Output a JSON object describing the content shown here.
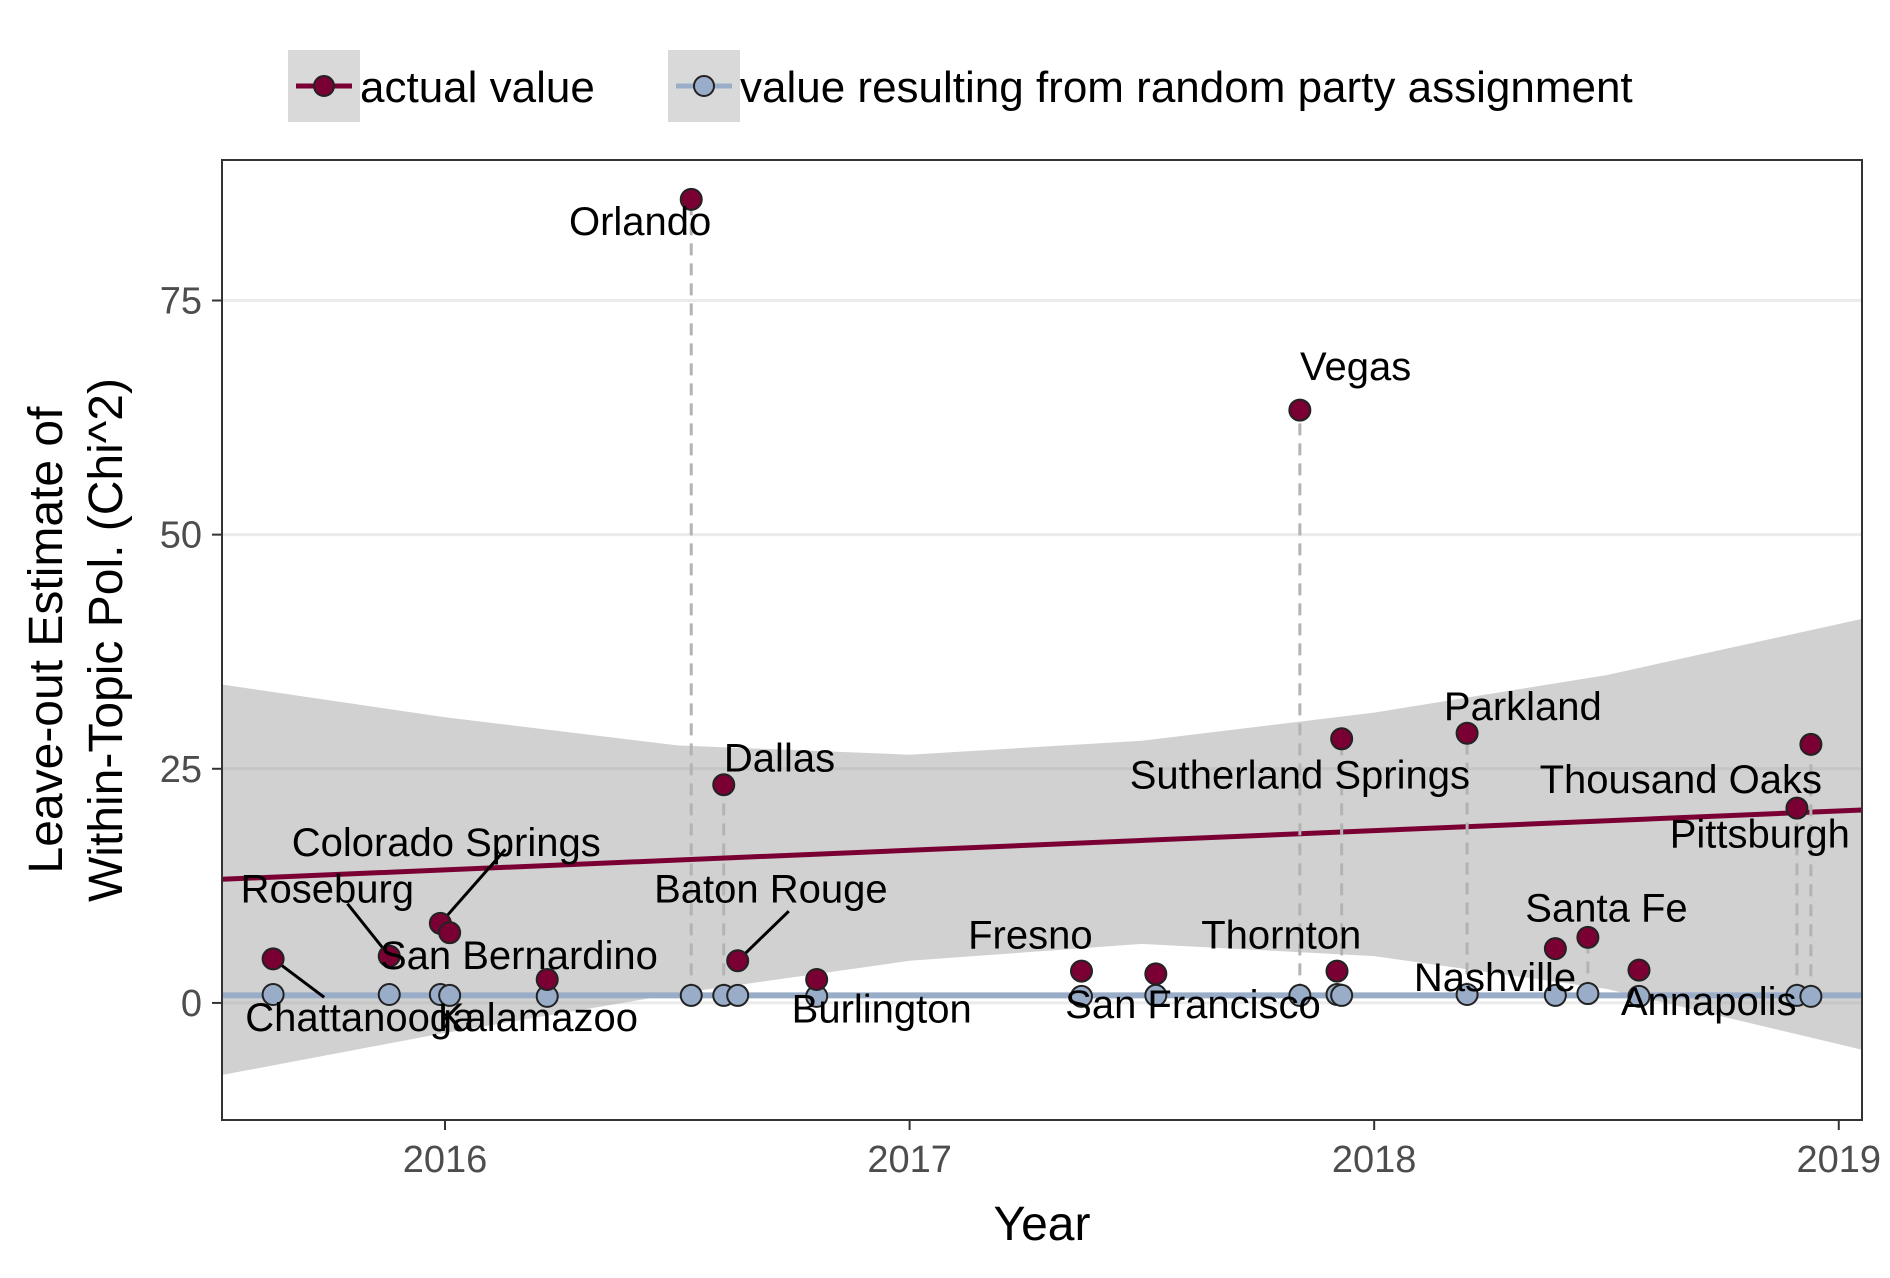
{
  "chart_data": {
    "type": "scatter",
    "xlabel": "Year",
    "ylabel": [
      "Leave-out Estimate of",
      "Within-Topic Pol. (Chi^2)"
    ],
    "xlim": [
      2015.52,
      2019.05
    ],
    "ylim": [
      -12.5,
      90
    ],
    "x_ticks": [
      2016,
      2017,
      2018,
      2019
    ],
    "x_tick_labels": [
      "2016",
      "2017",
      "2018",
      "2019"
    ],
    "y_ticks": [
      0,
      25,
      50,
      75
    ],
    "y_tick_labels": [
      "0",
      "25",
      "50",
      "75"
    ],
    "grid": true,
    "legend_position": "top",
    "legend": [
      {
        "label": "actual value",
        "color": "#7a0034"
      },
      {
        "label": "value resulting from random party assignment",
        "color": "#9aadc8"
      }
    ],
    "series": [
      {
        "name": "actual value",
        "color": "#7a0034",
        "points": [
          {
            "x": 2015.63,
            "y": 4.7
          },
          {
            "x": 2015.88,
            "y": 5.0
          },
          {
            "x": 2015.99,
            "y": 8.5
          },
          {
            "x": 2016.01,
            "y": 7.5
          },
          {
            "x": 2016.22,
            "y": 2.5
          },
          {
            "x": 2016.53,
            "y": 85.8
          },
          {
            "x": 2016.6,
            "y": 23.3
          },
          {
            "x": 2016.63,
            "y": 4.5
          },
          {
            "x": 2016.8,
            "y": 2.5
          },
          {
            "x": 2017.37,
            "y": 3.4
          },
          {
            "x": 2017.53,
            "y": 3.1
          },
          {
            "x": 2017.84,
            "y": 63.3
          },
          {
            "x": 2017.92,
            "y": 3.4
          },
          {
            "x": 2017.93,
            "y": 28.2
          },
          {
            "x": 2018.2,
            "y": 28.8
          },
          {
            "x": 2018.39,
            "y": 5.8
          },
          {
            "x": 2018.46,
            "y": 7.0
          },
          {
            "x": 2018.57,
            "y": 3.5
          },
          {
            "x": 2018.91,
            "y": 20.8
          },
          {
            "x": 2018.94,
            "y": 27.6
          }
        ]
      },
      {
        "name": "value resulting from random party assignment",
        "color": "#9aadc8",
        "points": [
          {
            "x": 2015.63,
            "y": 0.9
          },
          {
            "x": 2015.88,
            "y": 0.9
          },
          {
            "x": 2015.99,
            "y": 0.9
          },
          {
            "x": 2016.01,
            "y": 0.8
          },
          {
            "x": 2016.22,
            "y": 0.7
          },
          {
            "x": 2016.53,
            "y": 0.8
          },
          {
            "x": 2016.6,
            "y": 0.8
          },
          {
            "x": 2016.63,
            "y": 0.8
          },
          {
            "x": 2016.8,
            "y": 0.7
          },
          {
            "x": 2017.37,
            "y": 0.7
          },
          {
            "x": 2017.53,
            "y": 0.8
          },
          {
            "x": 2017.84,
            "y": 0.8
          },
          {
            "x": 2017.92,
            "y": 0.9
          },
          {
            "x": 2017.93,
            "y": 0.8
          },
          {
            "x": 2018.2,
            "y": 0.9
          },
          {
            "x": 2018.39,
            "y": 0.8
          },
          {
            "x": 2018.46,
            "y": 1.0
          },
          {
            "x": 2018.57,
            "y": 0.7
          },
          {
            "x": 2018.91,
            "y": 0.8
          },
          {
            "x": 2018.94,
            "y": 0.7
          }
        ]
      }
    ],
    "trend_actual": {
      "x": [
        2015.52,
        2019.05
      ],
      "y": [
        13.2,
        20.6
      ]
    },
    "trend_random": {
      "x": [
        2015.52,
        2019.05
      ],
      "y": [
        0.8,
        0.8
      ]
    },
    "confidence_band": {
      "x": [
        2015.52,
        2016.0,
        2016.5,
        2017.0,
        2017.5,
        2018.0,
        2018.5,
        2019.05
      ],
      "lower": [
        -7.7,
        -3.2,
        1.0,
        4.5,
        6.3,
        5.0,
        1.5,
        -5.0
      ],
      "upper": [
        34.0,
        30.5,
        27.5,
        26.5,
        28.0,
        31.0,
        35.0,
        41.0
      ]
    },
    "drop_lines": [
      {
        "x": 2016.53,
        "y_from": 0.8,
        "y_to": 85.8
      },
      {
        "x": 2016.6,
        "y_from": 0.8,
        "y_to": 23.3
      },
      {
        "x": 2017.84,
        "y_from": 0.8,
        "y_to": 63.3
      },
      {
        "x": 2017.93,
        "y_from": 0.8,
        "y_to": 28.2
      },
      {
        "x": 2018.2,
        "y_from": 0.9,
        "y_to": 28.8
      },
      {
        "x": 2018.46,
        "y_from": 1.0,
        "y_to": 7.0
      },
      {
        "x": 2018.91,
        "y_from": 0.8,
        "y_to": 20.8
      },
      {
        "x": 2018.94,
        "y_from": 0.7,
        "y_to": 27.6
      }
    ],
    "annotations": [
      {
        "text": "Orlando",
        "x": 2016.42,
        "y": 82.0,
        "anchor": "middle"
      },
      {
        "text": "Vegas",
        "x": 2017.96,
        "y": 66.5,
        "anchor": "middle"
      },
      {
        "text": "Dallas",
        "x": 2016.72,
        "y": 24.7,
        "anchor": "middle"
      },
      {
        "text": "Parkland",
        "x": 2018.32,
        "y": 30.2,
        "anchor": "middle"
      },
      {
        "text": "Sutherland Springs",
        "x": 2017.84,
        "y": 22.9,
        "anchor": "middle"
      },
      {
        "text": "Thousand Oaks",
        "x": 2018.66,
        "y": 22.4,
        "anchor": "middle"
      },
      {
        "text": "Pittsburgh",
        "x": 2018.83,
        "y": 16.6,
        "anchor": "middle"
      },
      {
        "text": "Colorado Springs",
        "x": 2015.67,
        "y": 15.7,
        "anchor": "start"
      },
      {
        "text": "Roseburg",
        "x": 2015.56,
        "y": 10.7,
        "anchor": "start"
      },
      {
        "text": "Baton Rouge",
        "x": 2016.45,
        "y": 10.7,
        "anchor": "start"
      },
      {
        "text": "Santa Fe",
        "x": 2018.5,
        "y": 8.7,
        "anchor": "middle"
      },
      {
        "text": "Fresno",
        "x": 2017.26,
        "y": 5.8,
        "anchor": "middle"
      },
      {
        "text": "Thornton",
        "x": 2017.8,
        "y": 5.8,
        "anchor": "middle"
      },
      {
        "text": "San Bernardino",
        "x": 2015.86,
        "y": 3.6,
        "anchor": "start"
      },
      {
        "text": "Nashville",
        "x": 2018.26,
        "y": 1.3,
        "anchor": "middle"
      },
      {
        "text": "Chattanooga",
        "x": 2015.57,
        "y": -3.0,
        "anchor": "start"
      },
      {
        "text": "Kalamazoo",
        "x": 2016.2,
        "y": -3.0,
        "anchor": "middle"
      },
      {
        "text": "Burlington",
        "x": 2016.94,
        "y": -2.1,
        "anchor": "middle"
      },
      {
        "text": "San Francisco",
        "x": 2017.61,
        "y": -1.6,
        "anchor": "middle"
      },
      {
        "text": "Annapolis",
        "x": 2018.72,
        "y": -1.3,
        "anchor": "middle"
      }
    ],
    "leader_lines": [
      {
        "x1": 2015.63,
        "y1": 4.7,
        "x2": 2015.74,
        "y2": 0.6
      },
      {
        "x1": 2015.88,
        "y1": 5.0,
        "x2": 2015.79,
        "y2": 10.6
      },
      {
        "x1": 2015.99,
        "y1": 8.5,
        "x2": 2016.13,
        "y2": 16.4
      },
      {
        "x1": 2016.63,
        "y1": 4.5,
        "x2": 2016.74,
        "y2": 9.8
      }
    ]
  }
}
